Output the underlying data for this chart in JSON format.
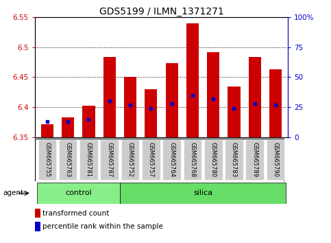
{
  "title": "GDS5199 / ILMN_1371271",
  "samples": [
    "GSM665755",
    "GSM665763",
    "GSM665781",
    "GSM665787",
    "GSM665752",
    "GSM665757",
    "GSM665764",
    "GSM665768",
    "GSM665780",
    "GSM665783",
    "GSM665789",
    "GSM665790"
  ],
  "groups": [
    "control",
    "control",
    "control",
    "control",
    "silica",
    "silica",
    "silica",
    "silica",
    "silica",
    "silica",
    "silica",
    "silica"
  ],
  "transformed_count": [
    6.372,
    6.383,
    6.403,
    6.483,
    6.45,
    6.43,
    6.473,
    6.54,
    6.492,
    6.435,
    6.483,
    6.463
  ],
  "percentile_pct": [
    13,
    13,
    15,
    30,
    27,
    24,
    28,
    35,
    32,
    24,
    28,
    27
  ],
  "ylim_left": [
    6.35,
    6.55
  ],
  "ylim_right": [
    0,
    100
  ],
  "yticks_left": [
    6.35,
    6.4,
    6.45,
    6.5,
    6.55
  ],
  "yticks_right": [
    0,
    25,
    50,
    75,
    100
  ],
  "ytick_labels_left": [
    "6.35",
    "6.4",
    "6.45",
    "6.5",
    "6.55"
  ],
  "ytick_labels_right": [
    "0",
    "25",
    "50",
    "75",
    "100%"
  ],
  "bar_color": "#cc0000",
  "percentile_color": "#0000cc",
  "control_color": "#88ee88",
  "silica_color": "#66dd66",
  "agent_label": "agent",
  "legend_transformed": "transformed count",
  "legend_percentile": "percentile rank within the sample",
  "bar_width": 0.6,
  "base_value": 6.35
}
